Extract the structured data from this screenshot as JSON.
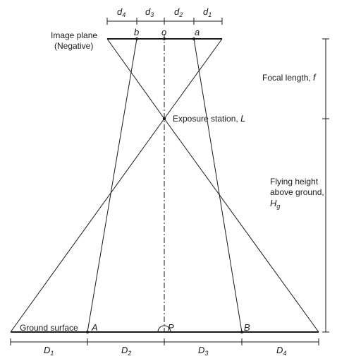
{
  "labels": {
    "image_plane_line1": "Image plane",
    "image_plane_line2": "(Negative)",
    "focal_length": "Focal length, ",
    "focal_length_sym": "f",
    "exposure_station": "Exposure station, ",
    "exposure_station_sym": "L",
    "flying_height_line1": "Flying height",
    "flying_height_line2": "above ground,",
    "flying_height_sym": "H",
    "flying_height_sub": "g",
    "ground_surface": "Ground surface"
  },
  "points": {
    "b": "b",
    "o": "o",
    "a": "a",
    "A": "A",
    "P": "P",
    "B": "B"
  },
  "image_distances": [
    {
      "sym": "d",
      "sub": "4"
    },
    {
      "sym": "d",
      "sub": "3"
    },
    {
      "sym": "d",
      "sub": "2"
    },
    {
      "sym": "d",
      "sub": "1"
    }
  ],
  "ground_distances": [
    {
      "sym": "D",
      "sub": "1"
    },
    {
      "sym": "D",
      "sub": "2"
    },
    {
      "sym": "D",
      "sub": "3"
    },
    {
      "sym": "D",
      "sub": "4"
    }
  ]
}
